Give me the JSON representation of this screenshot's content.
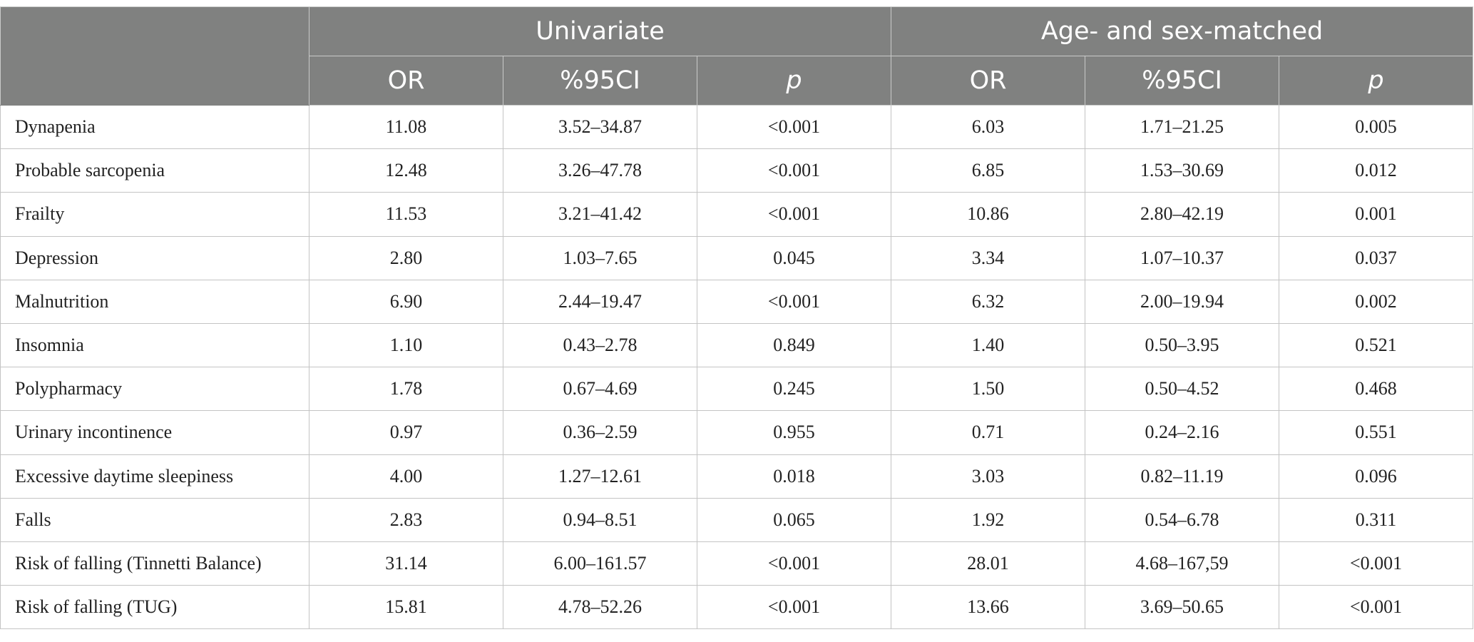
{
  "table": {
    "group_headers": [
      "Univariate",
      "Age- and sex-matched"
    ],
    "sub_headers": [
      "OR",
      "%95CI",
      "p",
      "OR",
      "%95CI",
      "p"
    ],
    "rows": [
      {
        "label": "Dynapenia",
        "values": [
          "11.08",
          "3.52–34.87",
          "<0.001",
          "6.03",
          "1.71–21.25",
          "0.005"
        ]
      },
      {
        "label": "Probable sarcopenia",
        "values": [
          "12.48",
          "3.26–47.78",
          "<0.001",
          "6.85",
          "1.53–30.69",
          "0.012"
        ]
      },
      {
        "label": "Frailty",
        "values": [
          "11.53",
          "3.21–41.42",
          "<0.001",
          "10.86",
          "2.80–42.19",
          "0.001"
        ]
      },
      {
        "label": "Depression",
        "values": [
          "2.80",
          "1.03–7.65",
          "0.045",
          "3.34",
          "1.07–10.37",
          "0.037"
        ]
      },
      {
        "label": "Malnutrition",
        "values": [
          "6.90",
          "2.44–19.47",
          "<0.001",
          "6.32",
          "2.00–19.94",
          "0.002"
        ]
      },
      {
        "label": "Insomnia",
        "values": [
          "1.10",
          "0.43–2.78",
          "0.849",
          "1.40",
          "0.50–3.95",
          "0.521"
        ]
      },
      {
        "label": "Polypharmacy",
        "values": [
          "1.78",
          "0.67–4.69",
          "0.245",
          "1.50",
          "0.50–4.52",
          "0.468"
        ]
      },
      {
        "label": "Urinary incontinence",
        "values": [
          "0.97",
          "0.36–2.59",
          "0.955",
          "0.71",
          "0.24–2.16",
          "0.551"
        ]
      },
      {
        "label": "Excessive daytime sleepiness",
        "values": [
          "4.00",
          "1.27–12.61",
          "0.018",
          "3.03",
          "0.82–11.19",
          "0.096"
        ]
      },
      {
        "label": "Falls",
        "values": [
          "2.83",
          "0.94–8.51",
          "0.065",
          "1.92",
          "0.54–6.78",
          "0.311"
        ]
      },
      {
        "label": "Risk of falling (Tinnetti Balance)",
        "values": [
          "31.14",
          "6.00–161.57",
          "<0.001",
          "28.01",
          "4.68–167,59",
          "<0.001"
        ]
      },
      {
        "label": "Risk of falling (TUG)",
        "values": [
          "15.81",
          "4.78–52.26",
          "<0.001",
          "13.66",
          "3.69–50.65",
          "<0.001"
        ]
      }
    ]
  },
  "colors": {
    "header_bg": "#808180",
    "header_text": "#ffffff",
    "grid_line": "#c4c4c4"
  }
}
